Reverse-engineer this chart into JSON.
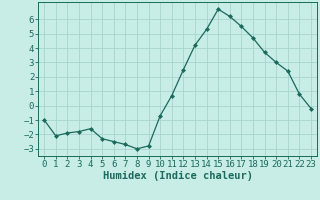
{
  "x": [
    0,
    1,
    2,
    3,
    4,
    5,
    6,
    7,
    8,
    9,
    10,
    11,
    12,
    13,
    14,
    15,
    16,
    17,
    18,
    19,
    20,
    21,
    22,
    23
  ],
  "y": [
    -1.0,
    -2.1,
    -1.9,
    -1.8,
    -1.6,
    -2.3,
    -2.5,
    -2.7,
    -3.0,
    -2.8,
    -0.7,
    0.7,
    2.5,
    4.2,
    5.3,
    6.7,
    6.2,
    5.5,
    4.7,
    3.7,
    3.0,
    2.4,
    0.8,
    -0.2
  ],
  "line_color": "#1a6b5a",
  "marker": "D",
  "marker_size": 2.0,
  "bg_color": "#c8ece6",
  "grid_color": "#a8d4ce",
  "xlabel": "Humidex (Indice chaleur)",
  "xlabel_fontsize": 7.5,
  "tick_fontsize": 6.5,
  "ylim": [
    -3.5,
    7.2
  ],
  "xlim": [
    -0.5,
    23.5
  ],
  "yticks": [
    -3,
    -2,
    -1,
    0,
    1,
    2,
    3,
    4,
    5,
    6
  ],
  "xticks": [
    0,
    1,
    2,
    3,
    4,
    5,
    6,
    7,
    8,
    9,
    10,
    11,
    12,
    13,
    14,
    15,
    16,
    17,
    18,
    19,
    20,
    21,
    22,
    23
  ]
}
